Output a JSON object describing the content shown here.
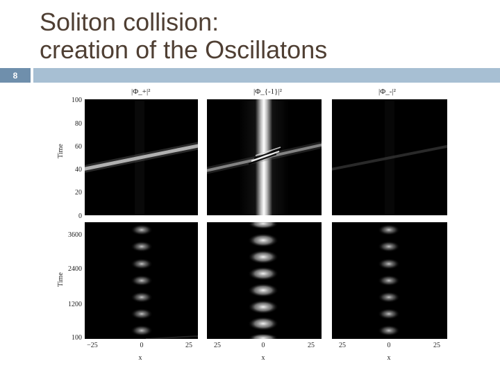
{
  "slide": {
    "number": "8",
    "title_lines": [
      "Soliton collision:",
      "creation of the Oscillatons"
    ]
  },
  "figure": {
    "panel_titles": [
      "|Φ_+|²",
      "|Φ_{-1}|²",
      "|Φ_-|²"
    ],
    "y_label": "Time",
    "x_label": "x",
    "top_yticks": [
      "100",
      "80",
      "60",
      "40",
      "20",
      "0"
    ],
    "bottom_yticks": [
      "3600",
      "2400",
      "1200",
      "100"
    ],
    "xticks": [
      [
        "−25",
        "0",
        "25"
      ],
      [
        "25",
        "0",
        "25"
      ],
      [
        "25",
        "0",
        "25"
      ]
    ]
  },
  "colors": {
    "title_text": "#4f3f33",
    "accent_bar": "#6f8fac",
    "title_rule": "#a7bfd3",
    "panel_bg": "#000000",
    "signal": "#ffffff"
  }
}
